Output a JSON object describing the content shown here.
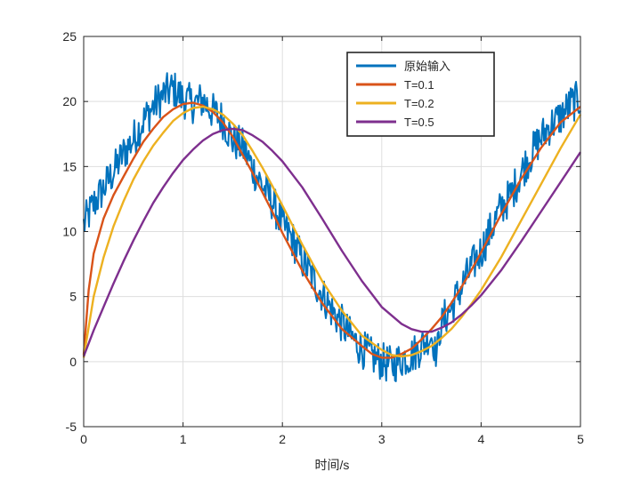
{
  "chart_data": {
    "type": "line",
    "title": "",
    "xlabel": "时间/s",
    "ylabel": "",
    "xlim": [
      0,
      5
    ],
    "ylim": [
      -5,
      25
    ],
    "xticks": [
      0,
      1,
      2,
      3,
      4,
      5
    ],
    "yticks": [
      -5,
      0,
      5,
      10,
      15,
      20,
      25
    ],
    "grid": true,
    "legend_position": "top-right",
    "series": [
      {
        "name": "原始输入",
        "color": "#0072BD",
        "noisy": true,
        "x": [
          0,
          0.1,
          0.2,
          0.3,
          0.4,
          0.5,
          0.6,
          0.7,
          0.8,
          0.9,
          1.0,
          1.1,
          1.2,
          1.3,
          1.4,
          1.5,
          1.6,
          1.7,
          1.8,
          1.9,
          2.0,
          2.1,
          2.2,
          2.3,
          2.4,
          2.5,
          2.6,
          2.7,
          2.8,
          2.9,
          3.0,
          3.1,
          3.2,
          3.3,
          3.4,
          3.5,
          3.55,
          3.6,
          3.7,
          3.8,
          3.9,
          4.0,
          4.1,
          4.2,
          4.3,
          4.4,
          4.5,
          4.6,
          4.7,
          4.8,
          4.9,
          5.0
        ],
        "y": [
          10.5,
          12.1,
          13.3,
          14.6,
          16.0,
          17.1,
          18.5,
          19.6,
          20.5,
          21.0,
          20.2,
          19.8,
          20.1,
          19.2,
          18.6,
          17.0,
          16.5,
          14.9,
          13.5,
          12.3,
          10.5,
          9.4,
          7.8,
          6.5,
          5.2,
          3.9,
          2.9,
          1.8,
          1.0,
          0.4,
          0.0,
          -0.3,
          0.2,
          0.5,
          1.2,
          2.0,
          0.5,
          3.0,
          4.1,
          5.7,
          7.2,
          8.5,
          10.2,
          11.8,
          12.8,
          14.5,
          15.9,
          17.2,
          18.2,
          18.8,
          19.8,
          20.2
        ]
      },
      {
        "name": "T=0.1",
        "color": "#D95319",
        "x": [
          0,
          0.05,
          0.1,
          0.2,
          0.3,
          0.4,
          0.5,
          0.6,
          0.7,
          0.8,
          0.9,
          1.0,
          1.1,
          1.2,
          1.3,
          1.4,
          1.5,
          1.6,
          1.7,
          1.8,
          1.9,
          2.0,
          2.2,
          2.4,
          2.6,
          2.8,
          2.9,
          3.0,
          3.1,
          3.2,
          3.3,
          3.4,
          3.5,
          3.6,
          3.7,
          3.8,
          3.9,
          4.0,
          4.2,
          4.4,
          4.6,
          4.8,
          5.0
        ],
        "y": [
          0.5,
          5.5,
          8.3,
          11.0,
          12.8,
          14.2,
          15.6,
          16.9,
          17.9,
          18.8,
          19.4,
          19.8,
          19.9,
          19.7,
          19.2,
          18.4,
          17.3,
          15.9,
          14.5,
          13.0,
          11.5,
          9.9,
          7.0,
          4.5,
          2.5,
          1.2,
          0.6,
          0.3,
          0.3,
          0.6,
          1.0,
          1.7,
          2.5,
          3.4,
          4.5,
          5.7,
          7.0,
          8.4,
          11.3,
          14.0,
          16.4,
          18.4,
          19.6
        ]
      },
      {
        "name": "T=0.2",
        "color": "#EDB120",
        "x": [
          0,
          0.1,
          0.2,
          0.3,
          0.4,
          0.5,
          0.6,
          0.7,
          0.8,
          0.9,
          1.0,
          1.1,
          1.2,
          1.3,
          1.4,
          1.5,
          1.6,
          1.7,
          1.8,
          1.9,
          2.0,
          2.2,
          2.4,
          2.6,
          2.8,
          3.0,
          3.1,
          3.2,
          3.3,
          3.4,
          3.5,
          3.6,
          3.7,
          3.8,
          3.9,
          4.0,
          4.2,
          4.4,
          4.6,
          4.8,
          5.0
        ],
        "y": [
          0.3,
          5.0,
          8.0,
          10.4,
          12.3,
          14.0,
          15.4,
          16.6,
          17.6,
          18.5,
          19.1,
          19.5,
          19.6,
          19.4,
          19.0,
          18.3,
          17.4,
          16.2,
          14.9,
          13.5,
          12.0,
          9.0,
          6.2,
          3.9,
          2.0,
          0.9,
          0.5,
          0.4,
          0.5,
          0.8,
          1.2,
          1.8,
          2.5,
          3.4,
          4.4,
          5.5,
          8.0,
          10.8,
          13.6,
          16.4,
          19.0
        ]
      },
      {
        "name": "T=0.5",
        "color": "#7E2F8E",
        "x": [
          0,
          0.1,
          0.2,
          0.3,
          0.4,
          0.5,
          0.6,
          0.7,
          0.8,
          0.9,
          1.0,
          1.1,
          1.2,
          1.3,
          1.4,
          1.5,
          1.6,
          1.7,
          1.8,
          1.9,
          2.0,
          2.2,
          2.4,
          2.6,
          2.8,
          3.0,
          3.2,
          3.3,
          3.4,
          3.5,
          3.6,
          3.7,
          3.8,
          3.9,
          4.0,
          4.2,
          4.4,
          4.6,
          4.8,
          5.0
        ],
        "y": [
          0.4,
          2.4,
          4.2,
          6.0,
          7.7,
          9.3,
          10.8,
          12.2,
          13.4,
          14.5,
          15.5,
          16.3,
          17.0,
          17.5,
          17.8,
          17.9,
          17.8,
          17.4,
          16.9,
          16.2,
          15.4,
          13.4,
          11.0,
          8.5,
          6.2,
          4.2,
          2.9,
          2.5,
          2.3,
          2.3,
          2.6,
          3.0,
          3.6,
          4.3,
          5.1,
          7.0,
          9.2,
          11.5,
          13.8,
          16.1
        ]
      }
    ]
  }
}
